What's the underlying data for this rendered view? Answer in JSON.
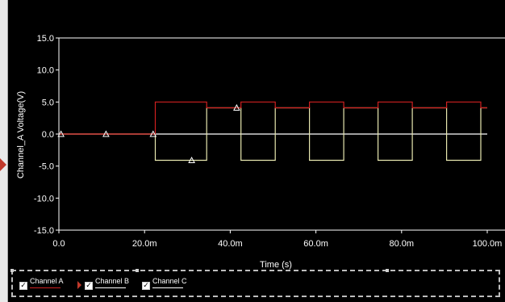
{
  "chart_data": {
    "type": "line",
    "title": "",
    "xlabel": "Time (s)",
    "ylabel": "Channel_A Voltage(V)",
    "xlim": [
      0,
      0.1
    ],
    "ylim": [
      -15,
      15
    ],
    "x_ticks": [
      0,
      0.02,
      0.04,
      0.06,
      0.08,
      0.1
    ],
    "x_tick_labels": [
      "0.0",
      "20.0m",
      "40.0m",
      "60.0m",
      "80.0m",
      "100.0m"
    ],
    "y_ticks": [
      15,
      10,
      5,
      0,
      -5,
      -10,
      -15
    ],
    "y_tick_labels": [
      "15.0",
      "10.0",
      "5.0",
      "0.0",
      "-5.0",
      "-10.0",
      "-15.0"
    ],
    "grid": false,
    "legend_position": "bottom",
    "series": [
      {
        "name": "Channel A",
        "color": "#d02020",
        "x": [
          0,
          0.0225,
          0.0225,
          0.0345,
          0.0345,
          0.0425,
          0.0425,
          0.0505,
          0.0505,
          0.0585,
          0.0585,
          0.0665,
          0.0665,
          0.0745,
          0.0745,
          0.0825,
          0.0825,
          0.0905,
          0.0905,
          0.0985,
          0.0985,
          0.1
        ],
        "values": [
          0,
          0,
          5,
          5,
          4.1,
          4.1,
          5,
          5,
          4.1,
          4.1,
          5,
          5,
          4.1,
          4.1,
          5,
          5,
          4.1,
          4.1,
          5,
          5,
          4.1,
          4.1
        ]
      },
      {
        "name": "Channel B",
        "color": "#e8e8b0",
        "x": [
          0,
          0.0225,
          0.0225,
          0.0345,
          0.0345,
          0.0425,
          0.0425,
          0.0505,
          0.0505,
          0.0585,
          0.0585,
          0.0665,
          0.0665,
          0.0745,
          0.0745,
          0.0825,
          0.0825,
          0.0905,
          0.0905,
          0.0985,
          0.0985,
          0.1
        ],
        "values": [
          0,
          0,
          -4.1,
          -4.1,
          4.1,
          4.1,
          -4.1,
          -4.1,
          4.1,
          4.1,
          -4.1,
          -4.1,
          4.1,
          4.1,
          -4.1,
          -4.1,
          4.1,
          4.1,
          -4.1,
          -4.1,
          4.1,
          4.1
        ]
      },
      {
        "name": "Channel C",
        "color": "#ffffff",
        "x": [
          0,
          0.1
        ],
        "values": [
          0,
          0
        ]
      }
    ],
    "markers": {
      "x": [
        0.0005,
        0.011,
        0.022,
        0.031,
        0.0415
      ],
      "values": [
        0,
        0,
        0,
        -4.1,
        4.1
      ]
    }
  },
  "legend": {
    "items": [
      {
        "label": "Channel A",
        "checked": "✓",
        "color": "#d02020"
      },
      {
        "label": "Channel B",
        "checked": "✓",
        "color": "#ffffff"
      },
      {
        "label": "Channel C",
        "checked": "✓",
        "color": "#ffffff"
      }
    ]
  }
}
